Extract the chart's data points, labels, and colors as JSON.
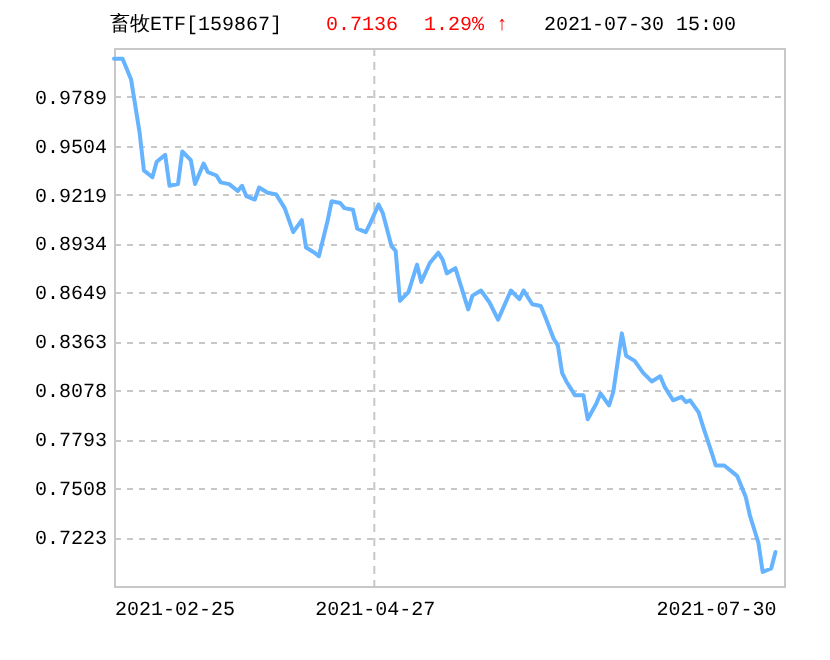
{
  "chart_data": {
    "type": "line",
    "title": "畜牧ETF[159867]",
    "annotations": [
      "0.7136",
      "1.29% ↑",
      "2021-07-30 15:00"
    ],
    "x": [
      "2021-02-25",
      "2021-02-27",
      "2021-02-28",
      "2021-03-01",
      "2021-03-03",
      "2021-03-04",
      "2021-03-06",
      "2021-03-07",
      "2021-03-09",
      "2021-03-10",
      "2021-03-12",
      "2021-03-13",
      "2021-03-15",
      "2021-03-16",
      "2021-03-18",
      "2021-03-19",
      "2021-03-21",
      "2021-03-22",
      "2021-03-24",
      "2021-03-26",
      "2021-03-27",
      "2021-03-28",
      "2021-03-30",
      "2021-03-31",
      "2021-04-02",
      "2021-04-04",
      "2021-04-06",
      "2021-04-08",
      "2021-04-10",
      "2021-04-11",
      "2021-04-13",
      "2021-04-14",
      "2021-04-16",
      "2021-04-17",
      "2021-04-19",
      "2021-04-20",
      "2021-04-22",
      "2021-04-23",
      "2021-04-25",
      "2021-04-26",
      "2021-04-28",
      "2021-04-29",
      "2021-05-01",
      "2021-05-02",
      "2021-05-03",
      "2021-05-05",
      "2021-05-07",
      "2021-05-08",
      "2021-05-10",
      "2021-05-12",
      "2021-05-13",
      "2021-05-14",
      "2021-05-16",
      "2021-05-17",
      "2021-05-19",
      "2021-05-20",
      "2021-05-22",
      "2021-05-24",
      "2021-05-26",
      "2021-05-29",
      "2021-05-31",
      "2021-06-01",
      "2021-06-03",
      "2021-06-05",
      "2021-06-06",
      "2021-06-08",
      "2021-06-09",
      "2021-06-10",
      "2021-06-11",
      "2021-06-13",
      "2021-06-15",
      "2021-06-16",
      "2021-06-18",
      "2021-06-19",
      "2021-06-21",
      "2021-06-22",
      "2021-06-24",
      "2021-06-25",
      "2021-06-27",
      "2021-06-29",
      "2021-07-01",
      "2021-07-03",
      "2021-07-04",
      "2021-07-06",
      "2021-07-08",
      "2021-07-09",
      "2021-07-10",
      "2021-07-12",
      "2021-07-13",
      "2021-07-15",
      "2021-07-16",
      "2021-07-18",
      "2021-07-20",
      "2021-07-21",
      "2021-07-23",
      "2021-07-24",
      "2021-07-26",
      "2021-07-27",
      "2021-07-29",
      "2021-07-30"
    ],
    "series": [
      {
        "color": "#66b3ff",
        "values": [
          1.001,
          1.001,
          0.995,
          0.989,
          0.958,
          0.936,
          0.932,
          0.941,
          0.945,
          0.927,
          0.928,
          0.947,
          0.942,
          0.928,
          0.94,
          0.935,
          0.933,
          0.929,
          0.928,
          0.924,
          0.927,
          0.921,
          0.919,
          0.926,
          0.923,
          0.922,
          0.914,
          0.9,
          0.907,
          0.891,
          0.888,
          0.886,
          0.906,
          0.918,
          0.917,
          0.914,
          0.913,
          0.902,
          0.9,
          0.905,
          0.916,
          0.911,
          0.892,
          0.889,
          0.86,
          0.865,
          0.881,
          0.871,
          0.882,
          0.888,
          0.884,
          0.876,
          0.879,
          0.871,
          0.855,
          0.863,
          0.866,
          0.859,
          0.849,
          0.866,
          0.861,
          0.866,
          0.858,
          0.857,
          0.851,
          0.838,
          0.834,
          0.818,
          0.813,
          0.805,
          0.805,
          0.791,
          0.8,
          0.806,
          0.799,
          0.807,
          0.841,
          0.828,
          0.825,
          0.818,
          0.813,
          0.816,
          0.81,
          0.802,
          0.804,
          0.801,
          0.802,
          0.795,
          0.787,
          0.772,
          0.764,
          0.764,
          0.76,
          0.758,
          0.746,
          0.735,
          0.719,
          0.702,
          0.704,
          0.7136
        ]
      }
    ],
    "xlim": [
      "2021-02-25",
      "2021-08-01"
    ],
    "xticks": [
      "2021-02-25",
      "2021-04-27",
      "2021-07-30"
    ],
    "ylim": [
      0.6938,
      1.0073
    ],
    "yticks": [
      0.7223,
      0.7508,
      0.7793,
      0.8078,
      0.8363,
      0.8649,
      0.8934,
      0.9219,
      0.9504,
      0.9789
    ],
    "grid": "y",
    "ref_lines": [
      {
        "axis": "x",
        "value": "2021-04-27",
        "line_style": "dashed"
      }
    ],
    "line_style": "solid",
    "marker": "none"
  }
}
